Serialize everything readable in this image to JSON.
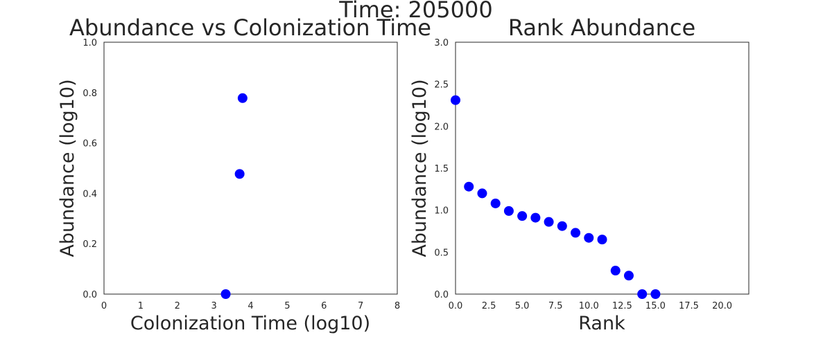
{
  "figure": {
    "suptitle": "Time: 205000"
  },
  "chart_data": [
    {
      "type": "scatter",
      "title": "Abundance vs Colonization Time",
      "xlabel": "Colonization Time (log10)",
      "ylabel": "Abundance (log10)",
      "xlim": [
        0,
        8
      ],
      "ylim": [
        0,
        1.0
      ],
      "xticks": [
        0,
        1,
        2,
        3,
        4,
        5,
        6,
        7,
        8
      ],
      "xtick_labels": [
        "0",
        "1",
        "2",
        "3",
        "4",
        "5",
        "6",
        "7",
        "8"
      ],
      "yticks": [
        0,
        0.2,
        0.4,
        0.6,
        0.8,
        1.0
      ],
      "ytick_labels": [
        "0.0",
        "0.2",
        "0.4",
        "0.6",
        "0.8",
        "1.0"
      ],
      "grid": false,
      "marker_color": "#0000ff",
      "points": [
        {
          "x": 3.32,
          "y": 0.0
        },
        {
          "x": 3.7,
          "y": 0.477
        },
        {
          "x": 3.78,
          "y": 0.778
        }
      ]
    },
    {
      "type": "scatter",
      "title": "Rank Abundance",
      "xlabel": "Rank",
      "ylabel": "Abundance (log10)",
      "xlim": [
        0,
        22
      ],
      "ylim": [
        0,
        3.0
      ],
      "xticks": [
        0,
        2.5,
        5,
        7.5,
        10,
        12.5,
        15,
        17.5,
        20
      ],
      "xtick_labels": [
        "0.0",
        "2.5",
        "5.0",
        "7.5",
        "10.0",
        "12.5",
        "15.0",
        "17.5",
        "20.0"
      ],
      "yticks": [
        0,
        0.5,
        1.0,
        1.5,
        2.0,
        2.5,
        3.0
      ],
      "ytick_labels": [
        "0.0",
        "0.5",
        "1.0",
        "1.5",
        "2.0",
        "2.5",
        "3.0"
      ],
      "grid": false,
      "marker_color": "#0000ff",
      "points": [
        {
          "x": 0,
          "y": 2.31
        },
        {
          "x": 1,
          "y": 1.28
        },
        {
          "x": 2,
          "y": 1.2
        },
        {
          "x": 3,
          "y": 1.08
        },
        {
          "x": 4,
          "y": 0.99
        },
        {
          "x": 5,
          "y": 0.93
        },
        {
          "x": 6,
          "y": 0.91
        },
        {
          "x": 7,
          "y": 0.86
        },
        {
          "x": 8,
          "y": 0.81
        },
        {
          "x": 9,
          "y": 0.73
        },
        {
          "x": 10,
          "y": 0.67
        },
        {
          "x": 11,
          "y": 0.65
        },
        {
          "x": 12,
          "y": 0.28
        },
        {
          "x": 13,
          "y": 0.22
        },
        {
          "x": 14,
          "y": 0.0
        },
        {
          "x": 15,
          "y": 0.0
        }
      ]
    }
  ]
}
